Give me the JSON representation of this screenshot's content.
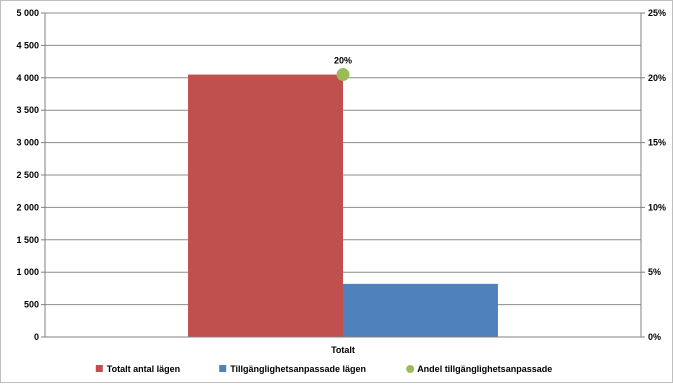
{
  "chart_data": {
    "type": "bar",
    "categories": [
      "Totalt"
    ],
    "series": [
      {
        "name": "Totalt antal lägen",
        "kind": "bar",
        "axis": "left",
        "color": "#C0504D",
        "values": [
          4050
        ]
      },
      {
        "name": "Tillgänglighetsanpassade lägen",
        "kind": "bar",
        "axis": "left",
        "color": "#4F81BD",
        "values": [
          820
        ]
      },
      {
        "name": "Andel tillgänglighetsanpassade",
        "kind": "point",
        "axis": "right",
        "color": "#9BBB59",
        "values": [
          0.2025
        ],
        "data_labels": [
          "20%"
        ]
      }
    ],
    "y_left": {
      "min": 0,
      "max": 5000,
      "ticks": [
        0,
        500,
        1000,
        1500,
        2000,
        2500,
        3000,
        3500,
        4000,
        4500,
        5000
      ],
      "tick_labels": [
        "0",
        "500",
        "1 000",
        "1 500",
        "2 000",
        "2 500",
        "3 000",
        "3 500",
        "4 000",
        "4 500",
        "5 000"
      ]
    },
    "y_right": {
      "min": 0,
      "max": 0.25,
      "ticks": [
        0,
        0.05,
        0.1,
        0.15,
        0.2,
        0.25
      ],
      "tick_labels": [
        "0%",
        "5%",
        "10%",
        "15%",
        "20%",
        "25%"
      ]
    },
    "grid": true,
    "legend_position": "bottom"
  }
}
